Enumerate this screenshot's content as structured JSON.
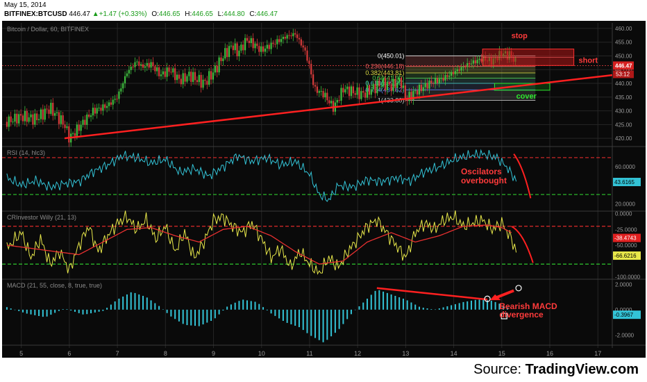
{
  "header": {
    "date": "May 15, 2014",
    "symbol": "BITFINEX:BTCUSD",
    "last": "446.47",
    "change": "+1.47 (+0.33%)",
    "open_label": "O:",
    "open": "446.65",
    "high_label": "H:",
    "high": "446.65",
    "low_label": "L:",
    "low": "444.80",
    "close_label": "C:",
    "close": "446.47"
  },
  "source": {
    "prefix": "Source: ",
    "name": "TradingView.com"
  },
  "colors": {
    "bg": "#0a0a0a",
    "grid": "#262626",
    "up": "#3fbf3f",
    "down": "#d63a3a",
    "trend": "#ff2020",
    "rsi": "#33c3d6",
    "willy": "#e8e84a",
    "willy_sig": "#e83030",
    "macd": "#33c3d6",
    "ob": "#e02a2a",
    "os": "#2ec82e"
  },
  "chart_data": [
    {
      "type": "candlestick",
      "title": "Bitcoin / Dollar, 60, BITFINEX",
      "y_ticks": [
        "460.00",
        "455.00",
        "450.00",
        "445.00",
        "440.00",
        "435.00",
        "430.00",
        "425.00",
        "420.00"
      ],
      "ylim": [
        417,
        462
      ],
      "x_ticks": [
        "5",
        "6",
        "7",
        "8",
        "9",
        "10",
        "11",
        "12",
        "13",
        "14",
        "15",
        "16",
        "17"
      ],
      "xlim": [
        4.6,
        17.3
      ],
      "path_days": [
        4.7,
        5.0,
        5.3,
        5.6,
        5.9,
        6.0,
        6.2,
        6.5,
        6.8,
        7.0,
        7.2,
        7.4,
        7.5,
        7.7,
        7.9,
        8.1,
        8.3,
        8.5,
        8.8,
        9.0,
        9.2,
        9.4,
        9.5,
        9.7,
        10.0,
        10.3,
        10.5,
        10.7,
        10.9,
        11.0,
        11.1,
        11.3,
        11.5,
        11.7,
        11.9,
        12.1,
        12.3,
        12.5,
        12.7,
        12.9,
        13.0,
        13.2,
        13.5,
        13.8,
        14.0,
        14.3,
        14.6,
        14.8,
        15.0,
        15.2,
        15.3
      ],
      "path_prices": [
        426,
        428,
        427,
        431,
        425,
        420,
        424,
        430,
        432,
        435,
        444,
        448,
        446,
        447,
        443,
        445,
        441,
        443,
        440,
        444,
        450,
        454,
        451,
        456,
        452,
        455,
        457,
        458,
        452,
        446,
        438,
        436,
        431,
        438,
        437,
        436,
        438,
        440,
        439,
        441,
        434,
        437,
        440,
        442,
        444,
        447,
        449,
        448,
        451,
        450,
        447
      ],
      "last_price": "446.47",
      "countdown": "53:12",
      "price_line": 446.47,
      "fib_levels": [
        {
          "label": "0(450.01)",
          "price": 450.01,
          "color": "#ffffff"
        },
        {
          "label": "0.236(446.18)",
          "price": 446.18,
          "color": "#ff6666"
        },
        {
          "label": "0.382(443.81)",
          "price": 443.81,
          "color": "#dddd44"
        },
        {
          "label": "0.5(441.90)",
          "price": 441.9,
          "color": "#55dd55"
        },
        {
          "label": "0.618(439.99)",
          "price": 439.99,
          "color": "#44cccc"
        },
        {
          "label": "0.764(437.62)",
          "price": 437.62,
          "color": "#6688ff"
        },
        {
          "label": "1(433.80)",
          "price": 433.8,
          "color": "#cccccc"
        }
      ],
      "fib_range": {
        "x_start": 13.0,
        "x_end": 15.7
      },
      "trendline": {
        "x1": 5.9,
        "y1": 420,
        "x2": 17.3,
        "y2": 443
      },
      "stop_zone": {
        "x1": 14.6,
        "x2": 16.5,
        "y1": 446.5,
        "y2": 452.5
      },
      "cover_zone": {
        "x1": 14.85,
        "x2": 16.0,
        "y1": 437.5,
        "y2": 440
      },
      "annotations": [
        {
          "text": "stop",
          "x": 15.2,
          "y": 456.5,
          "color": "#ff3b3b"
        },
        {
          "text": "short",
          "x": 16.6,
          "y": 447.5,
          "color": "#ff3b3b"
        },
        {
          "text": "cover",
          "x": 15.3,
          "y": 434.5,
          "color": "#2ee82e"
        }
      ]
    },
    {
      "type": "line",
      "title": "RSI (14, hlc3)",
      "y_ticks": [
        "60.0000",
        "20.0000"
      ],
      "tick_values": [
        60,
        20
      ],
      "ylim": [
        12,
        82
      ],
      "levels": [
        {
          "value": 70,
          "color": "#e02a2a"
        },
        {
          "value": 30,
          "color": "#2ec82e"
        }
      ],
      "x": [
        4.7,
        5.0,
        5.3,
        5.6,
        5.9,
        6.2,
        6.5,
        6.8,
        7.1,
        7.4,
        7.7,
        8.0,
        8.3,
        8.6,
        8.9,
        9.2,
        9.5,
        9.8,
        10.1,
        10.4,
        10.7,
        11.0,
        11.2,
        11.4,
        11.6,
        11.9,
        12.2,
        12.5,
        12.8,
        13.1,
        13.4,
        13.7,
        14.0,
        14.3,
        14.6,
        14.9,
        15.1,
        15.3
      ],
      "values": [
        48,
        40,
        45,
        38,
        42,
        44,
        55,
        62,
        72,
        70,
        64,
        68,
        54,
        58,
        50,
        60,
        72,
        66,
        70,
        62,
        66,
        52,
        30,
        24,
        40,
        38,
        46,
        44,
        48,
        45,
        55,
        60,
        68,
        72,
        74,
        70,
        60,
        45
      ],
      "current": "43.6165",
      "annotation": {
        "lines": [
          "Oscilators",
          "overbought"
        ],
        "color": "#ff3b3b"
      }
    },
    {
      "type": "line",
      "title": "CRInvestor Willy (21, 13)",
      "y_ticks": [
        "0.0000",
        "-25.0000",
        "-50.0000",
        "-100.0000"
      ],
      "tick_values": [
        0,
        -25,
        -50,
        -100
      ],
      "ylim": [
        -104,
        4
      ],
      "levels": [
        {
          "value": -20,
          "color": "#e02a2a"
        },
        {
          "value": -80,
          "color": "#2ec82e"
        }
      ],
      "series": [
        {
          "name": "Willy",
          "x": [
            4.7,
            5.0,
            5.2,
            5.4,
            5.6,
            5.8,
            6.0,
            6.2,
            6.4,
            6.6,
            6.8,
            7.0,
            7.2,
            7.4,
            7.6,
            7.8,
            8.0,
            8.2,
            8.4,
            8.6,
            8.8,
            9.0,
            9.2,
            9.4,
            9.6,
            9.8,
            10.0,
            10.2,
            10.4,
            10.6,
            10.8,
            11.0,
            11.2,
            11.4,
            11.6,
            11.8,
            12.0,
            12.2,
            12.4,
            12.6,
            12.8,
            13.0,
            13.2,
            13.4,
            13.6,
            13.8,
            14.0,
            14.2,
            14.4,
            14.6,
            14.8,
            15.0,
            15.2,
            15.3
          ],
          "values": [
            -55,
            -30,
            -70,
            -40,
            -80,
            -60,
            -90,
            -50,
            -20,
            -60,
            -35,
            -15,
            -5,
            -25,
            -10,
            -40,
            -20,
            -60,
            -30,
            -70,
            -45,
            -10,
            -5,
            -20,
            -30,
            -15,
            -40,
            -70,
            -55,
            -85,
            -60,
            -80,
            -95,
            -70,
            -85,
            -60,
            -40,
            -20,
            -10,
            -30,
            -50,
            -70,
            -30,
            -15,
            -25,
            -10,
            -5,
            -20,
            -15,
            -10,
            -25,
            -15,
            -40,
            -60
          ]
        },
        {
          "name": "Signal",
          "x": [
            4.7,
            5.2,
            5.7,
            6.2,
            6.7,
            7.2,
            7.7,
            8.2,
            8.7,
            9.2,
            9.7,
            10.2,
            10.7,
            11.2,
            11.7,
            12.2,
            12.7,
            13.2,
            13.7,
            14.2,
            14.7,
            15.0,
            15.2
          ],
          "values": [
            -50,
            -55,
            -60,
            -65,
            -45,
            -25,
            -22,
            -35,
            -45,
            -25,
            -20,
            -35,
            -60,
            -80,
            -75,
            -45,
            -30,
            -45,
            -35,
            -20,
            -18,
            -22,
            -30
          ]
        }
      ],
      "current": [
        "-38.4743",
        "-66.6216"
      ]
    },
    {
      "type": "bar",
      "title": "MACD (21, 55, close, 8, true, true)",
      "y_ticks": [
        "2.0000",
        "0.0000",
        "-2.0000"
      ],
      "tick_values": [
        2,
        0,
        -2
      ],
      "ylim": [
        -2.8,
        2.4
      ],
      "x": [
        4.7,
        5.1,
        5.5,
        5.9,
        6.3,
        6.7,
        7.0,
        7.3,
        7.6,
        7.9,
        8.1,
        8.4,
        8.7,
        9.0,
        9.3,
        9.6,
        9.9,
        10.2,
        10.5,
        10.8,
        11.0,
        11.3,
        11.6,
        11.9,
        12.1,
        12.4,
        12.7,
        13.0,
        13.3,
        13.6,
        13.9,
        14.2,
        14.5,
        14.8,
        15.0,
        15.2
      ],
      "values": [
        0.2,
        -0.3,
        -0.6,
        0.1,
        -0.4,
        -0.1,
        0.8,
        1.4,
        1.0,
        0.2,
        -0.5,
        -1.2,
        -1.3,
        -0.8,
        0.3,
        0.8,
        0.6,
        -0.3,
        -1.0,
        -1.4,
        -2.0,
        -2.6,
        -1.6,
        -0.2,
        0.5,
        1.6,
        1.2,
        0.8,
        0.2,
        0.0,
        0.3,
        0.6,
        0.8,
        0.7,
        0.4,
        0.0
      ],
      "current": "-0.3967",
      "divergence": {
        "x1": 12.4,
        "y1": 1.7,
        "x2": 14.7,
        "y2": 0.8
      },
      "annotation": {
        "lines": [
          "Bearish MACD",
          "divergence"
        ],
        "color": "#ff3b3b"
      }
    }
  ]
}
